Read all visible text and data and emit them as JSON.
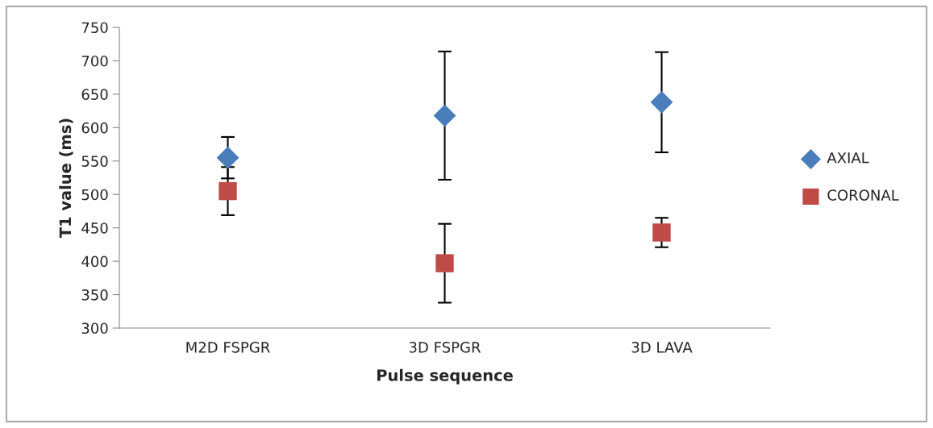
{
  "chart_data": {
    "type": "scatter",
    "xlabel": "Pulse sequence",
    "ylabel": "T1 value (ms)",
    "categories": [
      "M2D FSPGR",
      "3D FSPGR",
      "3D LAVA"
    ],
    "series": [
      {
        "name": "AXIAL",
        "color": "#4a7ebb",
        "marker": "diamond",
        "values": [
          555,
          618,
          638
        ],
        "errors": [
          31,
          96,
          75
        ]
      },
      {
        "name": "CORONAL",
        "color": "#be4b48",
        "marker": "square",
        "values": [
          505,
          397,
          443
        ],
        "errors": [
          36,
          59,
          22
        ]
      }
    ],
    "ylim": [
      300,
      750
    ],
    "yticks": [
      300,
      350,
      400,
      450,
      500,
      550,
      600,
      650,
      700,
      750
    ],
    "grid": false,
    "legend": "right"
  }
}
